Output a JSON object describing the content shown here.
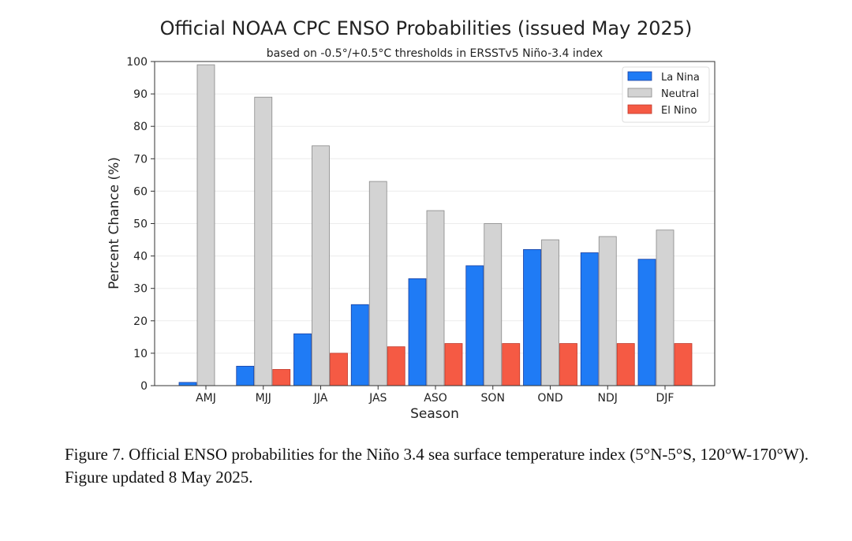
{
  "chart_data": {
    "type": "bar",
    "title": "Official NOAA CPC ENSO Probabilities (issued May 2025)",
    "subtitle": "based on -0.5°/+0.5°C thresholds in ERSSTv5 Niño-3.4 index",
    "xlabel": "Season",
    "ylabel": "Percent Chance (%)",
    "ylim": [
      0,
      100
    ],
    "yticks": [
      0,
      10,
      20,
      30,
      40,
      50,
      60,
      70,
      80,
      90,
      100
    ],
    "grid": true,
    "legend_position": "top-right",
    "categories": [
      "AMJ",
      "MJJ",
      "JJA",
      "JAS",
      "ASO",
      "SON",
      "OND",
      "NDJ",
      "DJF"
    ],
    "series": [
      {
        "name": "La Nina",
        "color": "#1f7bf5",
        "values": [
          1,
          6,
          16,
          25,
          33,
          37,
          42,
          41,
          39
        ]
      },
      {
        "name": "Neutral",
        "color": "#d3d3d3",
        "values": [
          99,
          89,
          74,
          63,
          54,
          50,
          45,
          46,
          48
        ]
      },
      {
        "name": "El Nino",
        "color": "#f55a44",
        "values": [
          0,
          5,
          10,
          12,
          13,
          13,
          13,
          13,
          13
        ]
      }
    ]
  },
  "caption": "Figure 7. Official ENSO probabilities for the Niño 3.4 sea surface temperature index (5°N-5°S, 120°W-170°W). Figure updated 8 May 2025."
}
